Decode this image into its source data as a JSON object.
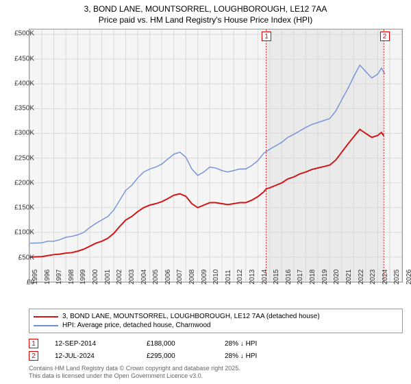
{
  "title_line1": "3, BOND LANE, MOUNTSORREL, LOUGHBOROUGH, LE12 7AA",
  "title_line2": "Price paid vs. HM Land Registry's House Price Index (HPI)",
  "chart": {
    "type": "line",
    "bg": "#f5f5f5",
    "grid_color": "#d8d8d8",
    "x_years": [
      1995,
      1996,
      1997,
      1998,
      1999,
      2000,
      2001,
      2002,
      2003,
      2004,
      2005,
      2006,
      2007,
      2008,
      2009,
      2010,
      2011,
      2012,
      2013,
      2014,
      2015,
      2016,
      2017,
      2018,
      2019,
      2020,
      2021,
      2022,
      2023,
      2024,
      2025,
      2026
    ],
    "xlim": [
      1995,
      2026
    ],
    "y_ticks": [
      0,
      50000,
      100000,
      150000,
      200000,
      250000,
      300000,
      350000,
      400000,
      450000,
      500000
    ],
    "y_tick_labels": [
      "£0",
      "£50K",
      "£100K",
      "£150K",
      "£200K",
      "£250K",
      "£300K",
      "£350K",
      "£400K",
      "£450K",
      "£500K"
    ],
    "ylim": [
      0,
      510000
    ],
    "shade_from": 2014.7,
    "shade_to": 2024.5,
    "series": [
      {
        "name": "HPI: Average price, detached house, Charnwood",
        "color": "#6e8fd8",
        "width": 1.4,
        "points": [
          [
            1995,
            78000
          ],
          [
            1996,
            79000
          ],
          [
            1996.5,
            82000
          ],
          [
            1997,
            82000
          ],
          [
            1997.5,
            85000
          ],
          [
            1998,
            90000
          ],
          [
            1998.5,
            92000
          ],
          [
            1999,
            95000
          ],
          [
            1999.5,
            100000
          ],
          [
            2000,
            110000
          ],
          [
            2000.5,
            118000
          ],
          [
            2001,
            125000
          ],
          [
            2001.5,
            132000
          ],
          [
            2002,
            145000
          ],
          [
            2002.5,
            165000
          ],
          [
            2003,
            185000
          ],
          [
            2003.5,
            195000
          ],
          [
            2004,
            210000
          ],
          [
            2004.5,
            222000
          ],
          [
            2005,
            228000
          ],
          [
            2005.5,
            232000
          ],
          [
            2006,
            238000
          ],
          [
            2006.5,
            248000
          ],
          [
            2007,
            258000
          ],
          [
            2007.5,
            262000
          ],
          [
            2008,
            252000
          ],
          [
            2008.5,
            228000
          ],
          [
            2009,
            215000
          ],
          [
            2009.5,
            222000
          ],
          [
            2010,
            232000
          ],
          [
            2010.5,
            230000
          ],
          [
            2011,
            225000
          ],
          [
            2011.5,
            222000
          ],
          [
            2012,
            225000
          ],
          [
            2012.5,
            228000
          ],
          [
            2013,
            228000
          ],
          [
            2013.5,
            235000
          ],
          [
            2014,
            245000
          ],
          [
            2014.5,
            260000
          ],
          [
            2015,
            268000
          ],
          [
            2015.5,
            275000
          ],
          [
            2016,
            282000
          ],
          [
            2016.5,
            292000
          ],
          [
            2017,
            298000
          ],
          [
            2017.5,
            305000
          ],
          [
            2018,
            312000
          ],
          [
            2018.5,
            318000
          ],
          [
            2019,
            322000
          ],
          [
            2019.5,
            326000
          ],
          [
            2020,
            330000
          ],
          [
            2020.5,
            345000
          ],
          [
            2021,
            368000
          ],
          [
            2021.5,
            390000
          ],
          [
            2022,
            415000
          ],
          [
            2022.5,
            438000
          ],
          [
            2023,
            425000
          ],
          [
            2023.5,
            412000
          ],
          [
            2024,
            420000
          ],
          [
            2024.3,
            432000
          ],
          [
            2024.6,
            420000
          ]
        ]
      },
      {
        "name": "3, BOND LANE, MOUNTSORREL, LOUGHBOROUGH, LE12 7AA (detached house)",
        "color": "#d01515",
        "width": 2,
        "points": [
          [
            1995,
            50000
          ],
          [
            1996,
            51000
          ],
          [
            1996.5,
            53000
          ],
          [
            1997,
            55000
          ],
          [
            1997.5,
            56000
          ],
          [
            1998,
            58000
          ],
          [
            1998.5,
            59000
          ],
          [
            1999,
            62000
          ],
          [
            1999.5,
            66000
          ],
          [
            2000,
            72000
          ],
          [
            2000.5,
            78000
          ],
          [
            2001,
            82000
          ],
          [
            2001.5,
            88000
          ],
          [
            2002,
            98000
          ],
          [
            2002.5,
            112000
          ],
          [
            2003,
            125000
          ],
          [
            2003.5,
            132000
          ],
          [
            2004,
            142000
          ],
          [
            2004.5,
            150000
          ],
          [
            2005,
            155000
          ],
          [
            2005.5,
            158000
          ],
          [
            2006,
            162000
          ],
          [
            2006.5,
            168000
          ],
          [
            2007,
            175000
          ],
          [
            2007.5,
            178000
          ],
          [
            2008,
            173000
          ],
          [
            2008.5,
            158000
          ],
          [
            2009,
            150000
          ],
          [
            2009.5,
            155000
          ],
          [
            2010,
            160000
          ],
          [
            2010.5,
            160000
          ],
          [
            2011,
            158000
          ],
          [
            2011.5,
            156000
          ],
          [
            2012,
            158000
          ],
          [
            2012.5,
            160000
          ],
          [
            2013,
            160000
          ],
          [
            2013.5,
            165000
          ],
          [
            2014,
            172000
          ],
          [
            2014.5,
            182000
          ],
          [
            2014.7,
            188000
          ],
          [
            2015,
            190000
          ],
          [
            2015.5,
            195000
          ],
          [
            2016,
            200000
          ],
          [
            2016.5,
            208000
          ],
          [
            2017,
            212000
          ],
          [
            2017.5,
            218000
          ],
          [
            2018,
            222000
          ],
          [
            2018.5,
            227000
          ],
          [
            2019,
            230000
          ],
          [
            2019.5,
            233000
          ],
          [
            2020,
            236000
          ],
          [
            2020.5,
            246000
          ],
          [
            2021,
            262000
          ],
          [
            2021.5,
            278000
          ],
          [
            2022,
            293000
          ],
          [
            2022.5,
            308000
          ],
          [
            2023,
            300000
          ],
          [
            2023.5,
            292000
          ],
          [
            2024,
            296000
          ],
          [
            2024.3,
            302000
          ],
          [
            2024.5,
            295000
          ]
        ]
      }
    ],
    "markers": [
      {
        "id": "1",
        "x": 2014.7,
        "y": 188000
      },
      {
        "id": "2",
        "x": 2024.5,
        "y": 295000
      }
    ]
  },
  "legend": [
    {
      "color": "#d01515",
      "label": "3, BOND LANE, MOUNTSORREL, LOUGHBOROUGH, LE12 7AA (detached house)"
    },
    {
      "color": "#6e8fd8",
      "label": "HPI: Average price, detached house, Charnwood"
    }
  ],
  "rows": [
    {
      "marker": "1",
      "date": "12-SEP-2014",
      "price": "£188,000",
      "pct": "28% ↓ HPI"
    },
    {
      "marker": "2",
      "date": "12-JUL-2024",
      "price": "£295,000",
      "pct": "28% ↓ HPI"
    }
  ],
  "credits_line1": "Contains HM Land Registry data © Crown copyright and database right 2025.",
  "credits_line2": "This data is licensed under the Open Government Licence v3.0."
}
